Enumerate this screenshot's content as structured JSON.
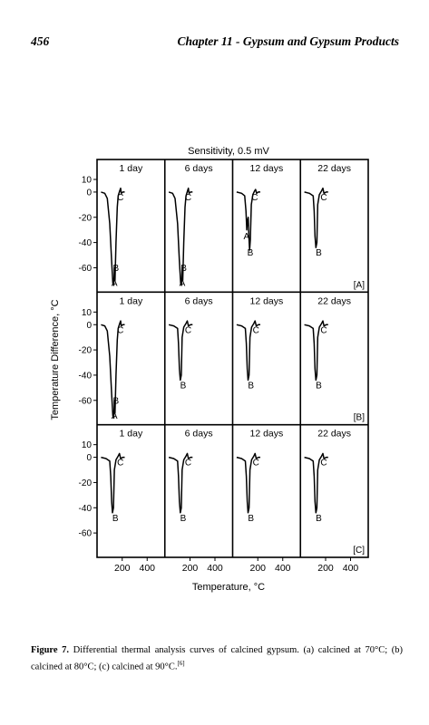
{
  "header": {
    "page_number": "456",
    "chapter_title": "Chapter 11 - Gypsum and Gypsum Products"
  },
  "figure": {
    "sensitivity_label": "Sensitivity, 0.5 mV",
    "y_axis_label": "Temperature Difference, °C",
    "x_axis_label": "Temperature, °C",
    "y_ticks": [
      "10",
      "0",
      "-20",
      "-40",
      "-60"
    ],
    "x_ticks": [
      "200",
      "400"
    ],
    "column_labels": [
      "1 day",
      "6 days",
      "12 days",
      "22 days"
    ],
    "row_tags": [
      "[A]",
      "[B]",
      "[C]"
    ]
  },
  "chart_data": {
    "type": "line",
    "title": "Sensitivity, 0.5 mV",
    "xlabel": "Temperature, °C",
    "ylabel": "Temperature Difference, °C",
    "xlim": [
      20,
      520
    ],
    "ylim": [
      -60,
      10
    ],
    "x_ticks": [
      200,
      400
    ],
    "y_ticks": [
      10,
      0,
      -20,
      -40,
      -60
    ],
    "panels": [
      {
        "row": "[A]",
        "column": "1 day",
        "points": [
          [
            30,
            0
          ],
          [
            60,
            -1
          ],
          [
            80,
            -5
          ],
          [
            100,
            -25
          ],
          [
            115,
            -55
          ],
          [
            125,
            -72
          ],
          [
            132,
            -74
          ],
          [
            137,
            -60
          ],
          [
            142,
            -70
          ],
          [
            150,
            -40
          ],
          [
            160,
            -12
          ],
          [
            168,
            -3
          ],
          [
            180,
            1
          ],
          [
            187,
            3
          ],
          [
            192,
            -1
          ],
          [
            205,
            0
          ],
          [
            220,
            0
          ]
        ],
        "labels": [
          {
            "text": "A",
            "x": 138,
            "y": -72
          },
          {
            "text": "B",
            "x": 150,
            "y": -60
          },
          {
            "text": "C",
            "x": 185,
            "y": -4
          }
        ]
      },
      {
        "row": "[A]",
        "column": "6 days",
        "points": [
          [
            30,
            0
          ],
          [
            60,
            -1
          ],
          [
            80,
            -5
          ],
          [
            100,
            -25
          ],
          [
            115,
            -55
          ],
          [
            125,
            -72
          ],
          [
            132,
            -74
          ],
          [
            137,
            -60
          ],
          [
            142,
            -70
          ],
          [
            150,
            -40
          ],
          [
            160,
            -12
          ],
          [
            168,
            -3
          ],
          [
            180,
            1
          ],
          [
            187,
            3
          ],
          [
            192,
            -1
          ],
          [
            205,
            0
          ],
          [
            220,
            0
          ]
        ],
        "labels": [
          {
            "text": "A",
            "x": 138,
            "y": -72
          },
          {
            "text": "B",
            "x": 150,
            "y": -60
          },
          {
            "text": "C",
            "x": 185,
            "y": -4
          }
        ]
      },
      {
        "row": "[A]",
        "column": "12 days",
        "points": [
          [
            30,
            0
          ],
          [
            70,
            -1
          ],
          [
            95,
            -3
          ],
          [
            105,
            -15
          ],
          [
            112,
            -30
          ],
          [
            118,
            -22
          ],
          [
            123,
            -20
          ],
          [
            128,
            -35
          ],
          [
            134,
            -46
          ],
          [
            140,
            -38
          ],
          [
            148,
            -10
          ],
          [
            160,
            -2
          ],
          [
            175,
            1
          ],
          [
            182,
            2
          ],
          [
            190,
            -1
          ],
          [
            205,
            0
          ],
          [
            220,
            0
          ]
        ],
        "labels": [
          {
            "text": "A",
            "x": 110,
            "y": -35
          },
          {
            "text": "B",
            "x": 140,
            "y": -48
          },
          {
            "text": "C",
            "x": 175,
            "y": -4
          }
        ]
      },
      {
        "row": "[A]",
        "column": "22 days",
        "points": [
          [
            30,
            0
          ],
          [
            70,
            -1
          ],
          [
            100,
            -3
          ],
          [
            108,
            -15
          ],
          [
            115,
            -35
          ],
          [
            122,
            -44
          ],
          [
            130,
            -40
          ],
          [
            137,
            -10
          ],
          [
            150,
            -2
          ],
          [
            168,
            1
          ],
          [
            178,
            3
          ],
          [
            187,
            -1
          ],
          [
            205,
            0
          ],
          [
            220,
            0
          ]
        ],
        "labels": [
          {
            "text": "B",
            "x": 145,
            "y": -48
          },
          {
            "text": "C",
            "x": 185,
            "y": -4
          }
        ]
      },
      {
        "row": "[B]",
        "column": "1 day",
        "points": [
          [
            30,
            0
          ],
          [
            60,
            -1
          ],
          [
            80,
            -5
          ],
          [
            100,
            -25
          ],
          [
            115,
            -55
          ],
          [
            125,
            -72
          ],
          [
            132,
            -74
          ],
          [
            137,
            -60
          ],
          [
            142,
            -70
          ],
          [
            150,
            -40
          ],
          [
            160,
            -12
          ],
          [
            168,
            -3
          ],
          [
            180,
            1
          ],
          [
            187,
            3
          ],
          [
            192,
            -1
          ],
          [
            205,
            0
          ],
          [
            220,
            0
          ]
        ],
        "labels": [
          {
            "text": "A",
            "x": 138,
            "y": -72
          },
          {
            "text": "B",
            "x": 150,
            "y": -60
          },
          {
            "text": "C",
            "x": 185,
            "y": -4
          }
        ]
      },
      {
        "row": "[B]",
        "column": "6 days",
        "points": [
          [
            30,
            0
          ],
          [
            70,
            -1
          ],
          [
            100,
            -3
          ],
          [
            108,
            -15
          ],
          [
            115,
            -35
          ],
          [
            122,
            -44
          ],
          [
            130,
            -40
          ],
          [
            137,
            -10
          ],
          [
            150,
            -2
          ],
          [
            168,
            1
          ],
          [
            178,
            3
          ],
          [
            187,
            -1
          ],
          [
            205,
            0
          ],
          [
            220,
            0
          ]
        ],
        "labels": [
          {
            "text": "B",
            "x": 145,
            "y": -48
          },
          {
            "text": "C",
            "x": 185,
            "y": -4
          }
        ]
      },
      {
        "row": "[B]",
        "column": "12 days",
        "points": [
          [
            30,
            0
          ],
          [
            70,
            -1
          ],
          [
            100,
            -3
          ],
          [
            108,
            -15
          ],
          [
            115,
            -35
          ],
          [
            122,
            -44
          ],
          [
            130,
            -40
          ],
          [
            137,
            -10
          ],
          [
            150,
            -2
          ],
          [
            168,
            1
          ],
          [
            178,
            3
          ],
          [
            187,
            -1
          ],
          [
            205,
            0
          ],
          [
            220,
            0
          ]
        ],
        "labels": [
          {
            "text": "B",
            "x": 145,
            "y": -48
          },
          {
            "text": "C",
            "x": 185,
            "y": -4
          }
        ]
      },
      {
        "row": "[B]",
        "column": "22 days",
        "points": [
          [
            30,
            0
          ],
          [
            70,
            -1
          ],
          [
            100,
            -3
          ],
          [
            108,
            -15
          ],
          [
            115,
            -35
          ],
          [
            122,
            -44
          ],
          [
            130,
            -40
          ],
          [
            137,
            -10
          ],
          [
            150,
            -2
          ],
          [
            168,
            1
          ],
          [
            178,
            3
          ],
          [
            187,
            -1
          ],
          [
            205,
            0
          ],
          [
            220,
            0
          ]
        ],
        "labels": [
          {
            "text": "B",
            "x": 145,
            "y": -48
          },
          {
            "text": "C",
            "x": 185,
            "y": -4
          }
        ]
      },
      {
        "row": "[C]",
        "column": "1 day",
        "points": [
          [
            30,
            0
          ],
          [
            70,
            -1
          ],
          [
            100,
            -3
          ],
          [
            108,
            -15
          ],
          [
            115,
            -35
          ],
          [
            122,
            -44
          ],
          [
            130,
            -40
          ],
          [
            137,
            -10
          ],
          [
            150,
            -2
          ],
          [
            168,
            1
          ],
          [
            178,
            3
          ],
          [
            187,
            -1
          ],
          [
            205,
            0
          ],
          [
            220,
            0
          ]
        ],
        "labels": [
          {
            "text": "B",
            "x": 145,
            "y": -48
          },
          {
            "text": "C",
            "x": 185,
            "y": -4
          }
        ]
      },
      {
        "row": "[C]",
        "column": "6 days",
        "points": [
          [
            30,
            0
          ],
          [
            70,
            -1
          ],
          [
            100,
            -3
          ],
          [
            108,
            -15
          ],
          [
            115,
            -35
          ],
          [
            122,
            -44
          ],
          [
            130,
            -40
          ],
          [
            137,
            -10
          ],
          [
            150,
            -2
          ],
          [
            168,
            1
          ],
          [
            178,
            3
          ],
          [
            187,
            -1
          ],
          [
            205,
            0
          ],
          [
            220,
            0
          ]
        ],
        "labels": [
          {
            "text": "B",
            "x": 145,
            "y": -48
          },
          {
            "text": "C",
            "x": 185,
            "y": -4
          }
        ]
      },
      {
        "row": "[C]",
        "column": "12 days",
        "points": [
          [
            30,
            0
          ],
          [
            70,
            -1
          ],
          [
            100,
            -3
          ],
          [
            108,
            -15
          ],
          [
            115,
            -35
          ],
          [
            122,
            -44
          ],
          [
            130,
            -40
          ],
          [
            137,
            -10
          ],
          [
            150,
            -2
          ],
          [
            168,
            1
          ],
          [
            178,
            3
          ],
          [
            187,
            -1
          ],
          [
            205,
            0
          ],
          [
            220,
            0
          ]
        ],
        "labels": [
          {
            "text": "B",
            "x": 145,
            "y": -48
          },
          {
            "text": "C",
            "x": 185,
            "y": -4
          }
        ]
      },
      {
        "row": "[C]",
        "column": "22 days",
        "points": [
          [
            30,
            0
          ],
          [
            70,
            -1
          ],
          [
            100,
            -3
          ],
          [
            108,
            -15
          ],
          [
            115,
            -35
          ],
          [
            122,
            -44
          ],
          [
            130,
            -40
          ],
          [
            137,
            -10
          ],
          [
            150,
            -2
          ],
          [
            168,
            1
          ],
          [
            178,
            3
          ],
          [
            187,
            -1
          ],
          [
            205,
            0
          ],
          [
            220,
            0
          ]
        ],
        "labels": [
          {
            "text": "B",
            "x": 145,
            "y": -48
          },
          {
            "text": "C",
            "x": 185,
            "y": -4
          }
        ]
      }
    ]
  },
  "caption": {
    "label": "Figure 7.",
    "text": "Differential thermal analysis curves of calcined gypsum. (a) calcined at 70°C; (b) calcined at 80°C; (c) calcined at 90°C.",
    "ref": "[6]"
  }
}
